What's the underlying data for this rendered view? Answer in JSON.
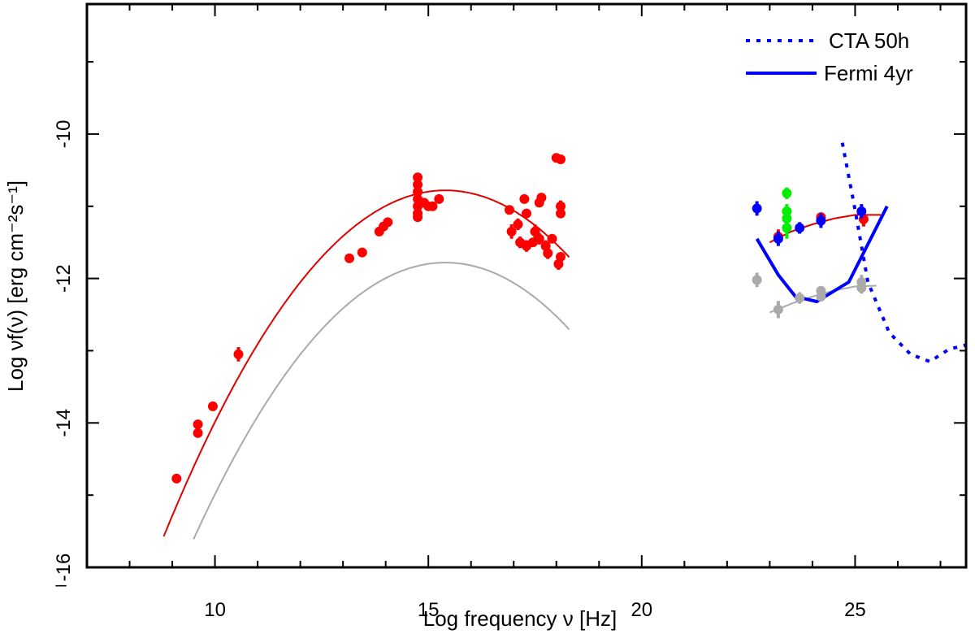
{
  "chart_data": {
    "type": "scatter",
    "title": "",
    "xlabel": "Log   frequency ν [Hz]",
    "ylabel": "Log   νf(ν) [erg cm⁻²s⁻¹]",
    "xlim": [
      7,
      27.6
    ],
    "ylim": [
      -16,
      -8.2
    ],
    "x_ticks": [
      10,
      15,
      20,
      25
    ],
    "x_tick_labels": [
      "10",
      "15",
      "20",
      "25"
    ],
    "y_ticks": [
      -16,
      -14,
      -12,
      -10
    ],
    "y_tick_labels": [
      "-16",
      "-14",
      "-12",
      "-10"
    ],
    "left_corner_label": "–",
    "grid": false,
    "legend_position": "top-right",
    "legend": [
      {
        "label": "CTA 50h",
        "color": "#0000ff",
        "style": "dotted"
      },
      {
        "label": "Fermi 4yr",
        "color": "#0000ff",
        "style": "solid"
      }
    ],
    "colors": {
      "high_state": "#ff0000",
      "low_state": "#aaaaaa",
      "fermi_points": "#0000ff",
      "green_points": "#00ee00",
      "sensitivity": "#0000ff"
    },
    "curves": [
      {
        "name": "red-model",
        "color": "#e00000",
        "type": "parabola",
        "peak_x": 15.4,
        "peak_y": -10.78,
        "curvature": 0.11,
        "x_range": [
          8.8,
          18.3
        ]
      },
      {
        "name": "grey-model",
        "color": "#aaaaaa",
        "type": "parabola",
        "peak_x": 15.4,
        "peak_y": -11.78,
        "curvature": 0.11,
        "x_range": [
          9.5,
          18.3
        ]
      },
      {
        "name": "red-gamma",
        "color": "#e00000",
        "points": [
          [
            23.0,
            -11.5
          ],
          [
            23.5,
            -11.35
          ],
          [
            24.0,
            -11.25
          ],
          [
            24.5,
            -11.17
          ],
          [
            25.0,
            -11.12
          ],
          [
            25.6,
            -11.12
          ]
        ]
      },
      {
        "name": "grey-gamma",
        "color": "#aaaaaa",
        "points": [
          [
            23.0,
            -12.47
          ],
          [
            23.5,
            -12.35
          ],
          [
            24.0,
            -12.25
          ],
          [
            24.5,
            -12.17
          ],
          [
            25.0,
            -12.11
          ],
          [
            25.5,
            -12.1
          ]
        ]
      }
    ],
    "sensitivity": {
      "fermi": [
        [
          22.7,
          -11.45
        ],
        [
          23.2,
          -11.95
        ],
        [
          23.6,
          -12.25
        ],
        [
          24.1,
          -12.32
        ],
        [
          24.85,
          -12.05
        ],
        [
          25.75,
          -11.0
        ]
      ],
      "cta": [
        [
          24.7,
          -10.12
        ],
        [
          25.0,
          -11.05
        ],
        [
          25.3,
          -12.05
        ],
        [
          25.8,
          -12.75
        ],
        [
          26.3,
          -13.05
        ],
        [
          26.75,
          -13.15
        ],
        [
          27.2,
          -12.98
        ],
        [
          27.6,
          -12.92
        ]
      ]
    },
    "series": [
      {
        "color": "#ff0000",
        "points": [
          [
            9.1,
            -14.77,
            0.05
          ],
          [
            9.6,
            -14.02,
            0.06
          ],
          [
            9.6,
            -14.14,
            0.06
          ],
          [
            9.95,
            -13.77,
            0.05
          ],
          [
            10.55,
            -13.05,
            0.1
          ],
          [
            13.15,
            -11.72,
            0.05
          ],
          [
            13.45,
            -11.64,
            0.05
          ],
          [
            13.85,
            -11.35,
            0.05
          ],
          [
            13.95,
            -11.28,
            0.05
          ],
          [
            14.05,
            -11.22,
            0.05
          ],
          [
            14.75,
            -10.6,
            0.05
          ],
          [
            14.75,
            -10.7,
            0.05
          ],
          [
            14.75,
            -10.8,
            0.05
          ],
          [
            14.75,
            -10.9,
            0.05
          ],
          [
            14.75,
            -11.0,
            0.05
          ],
          [
            14.75,
            -11.1,
            0.05
          ],
          [
            14.75,
            -11.15,
            0.05
          ],
          [
            14.9,
            -10.95,
            0.05
          ],
          [
            15.0,
            -11.0,
            0.05
          ],
          [
            15.1,
            -11.0,
            0.06
          ],
          [
            15.25,
            -10.9,
            0.05
          ],
          [
            16.9,
            -11.05,
            0.06
          ],
          [
            16.95,
            -11.35,
            0.1
          ],
          [
            17.1,
            -11.25,
            0.08
          ],
          [
            17.15,
            -11.5,
            0.08
          ],
          [
            17.25,
            -10.9,
            0.05
          ],
          [
            17.3,
            -11.1,
            0.06
          ],
          [
            17.3,
            -11.55,
            0.08
          ],
          [
            17.45,
            -11.5,
            0.06
          ],
          [
            17.5,
            -11.35,
            0.1
          ],
          [
            17.6,
            -11.45,
            0.08
          ],
          [
            17.65,
            -10.88,
            0.05
          ],
          [
            17.6,
            -10.95,
            0.05
          ],
          [
            17.75,
            -11.55,
            0.08
          ],
          [
            17.8,
            -11.65,
            0.08
          ],
          [
            17.9,
            -11.45,
            0.06
          ],
          [
            18.0,
            -10.33,
            0.05
          ],
          [
            18.1,
            -10.35,
            0.05
          ],
          [
            18.05,
            -11.8,
            0.08
          ],
          [
            18.1,
            -11.7,
            0.06
          ],
          [
            18.1,
            -11.0,
            0.08
          ],
          [
            18.1,
            -11.1,
            0.06
          ],
          [
            23.2,
            -11.42,
            0.1
          ],
          [
            24.2,
            -11.15,
            0.06
          ],
          [
            25.2,
            -11.18,
            0.1
          ]
        ]
      },
      {
        "color": "#0000ff",
        "points": [
          [
            22.7,
            -11.03,
            0.1
          ],
          [
            23.2,
            -11.45,
            0.1
          ],
          [
            23.7,
            -11.3,
            0.08
          ],
          [
            24.2,
            -11.2,
            0.1
          ],
          [
            25.15,
            -11.07,
            0.1
          ]
        ]
      },
      {
        "color": "#00ee00",
        "points": [
          [
            23.4,
            -10.82,
            0.08
          ],
          [
            23.4,
            -11.07,
            0.1
          ],
          [
            23.4,
            -11.17,
            0.1
          ],
          [
            23.4,
            -11.3,
            0.15
          ]
        ]
      },
      {
        "color": "#aaaaaa",
        "points": [
          [
            22.7,
            -12.02,
            0.1
          ],
          [
            23.2,
            -12.43,
            0.12
          ],
          [
            23.7,
            -12.27,
            0.08
          ],
          [
            24.2,
            -12.17,
            0.06
          ],
          [
            24.2,
            -12.25,
            0.06
          ],
          [
            25.15,
            -12.05,
            0.1
          ],
          [
            25.15,
            -12.13,
            0.08
          ]
        ]
      }
    ]
  }
}
